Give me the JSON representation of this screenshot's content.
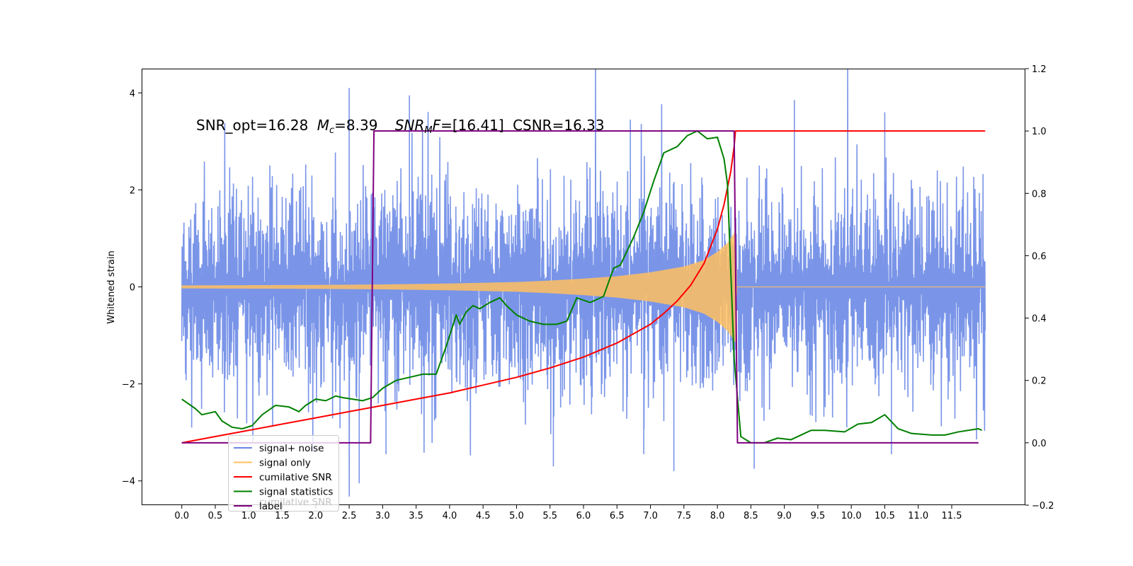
{
  "chart_data": {
    "type": "line",
    "annotation": {
      "snr_opt": "SNR_opt=16.28",
      "mc_symbol": "M",
      "mc_sub": "c",
      "mc_value": "=8.39",
      "snrmf_symbol": "SNR",
      "snrmf_sub": "M",
      "snrmf_tail": "F",
      "snrmf_value": "=[16.41]",
      "csnr": "CSNR=16.33"
    },
    "ylabel": "Whitened strain",
    "xlim": [
      -0.6,
      12.6
    ],
    "ylim": [
      -4.5,
      4.5
    ],
    "y2lim": [
      -0.2,
      1.2
    ],
    "x_ticks": [
      "0.0",
      "0.5",
      "1.0",
      "1.5",
      "2.0",
      "2.5",
      "3.0",
      "3.5",
      "4.0",
      "4.5",
      "5.0",
      "5.5",
      "6.0",
      "6.5",
      "7.0",
      "7.5",
      "8.0",
      "8.5",
      "9.0",
      "9.5",
      "10.0",
      "10.5",
      "11.0",
      "11.5"
    ],
    "y_ticks": [
      "4",
      "2",
      "0",
      "−2",
      "−4"
    ],
    "y_tick_values": [
      4,
      2,
      0,
      -2,
      -4
    ],
    "y2_ticks": [
      "1.2",
      "1.0",
      "0.8",
      "0.6",
      "0.4",
      "0.2",
      "0.0",
      "−0.2"
    ],
    "y2_tick_values": [
      1.2,
      1.0,
      0.8,
      0.6,
      0.4,
      0.2,
      0.0,
      -0.2
    ],
    "legend": {
      "placement": "lower-left",
      "entries": [
        {
          "label": "signal+ noise",
          "color": "#6b87e6"
        },
        {
          "label": "signal only",
          "color": "#ffbf5f"
        },
        {
          "label": "cumilative SNR",
          "color": "#ff0000"
        },
        {
          "label": "signal statistics",
          "color": "#008000"
        },
        {
          "label": "label",
          "color": "#800080"
        }
      ],
      "occluded_text": "cumilative SNR"
    },
    "series": [
      {
        "name": "signal+ noise",
        "axis": "left",
        "color": "#7a95e8",
        "description_kind": "noise",
        "x_range": [
          0.0,
          12.0
        ],
        "typical_amplitude": 2.0,
        "peaks": [
          [
            2.5,
            4.1
          ],
          [
            2.65,
            -4.05
          ],
          [
            3.4,
            3.95
          ],
          [
            9.15,
            3.85
          ],
          [
            10.5,
            3.6
          ],
          [
            7.35,
            -3.8
          ],
          [
            8.55,
            -3.75
          ],
          [
            5.55,
            -3.7
          ],
          [
            6.7,
            3.45
          ],
          [
            10.6,
            -3.45
          ],
          [
            3.05,
            -3.45
          ],
          [
            6.9,
            -3.45
          ]
        ]
      },
      {
        "name": "signal only",
        "axis": "left",
        "color": "#ffbf5f",
        "description_kind": "chirp",
        "x": [
          0.0,
          1.0,
          2.0,
          3.0,
          4.0,
          5.0,
          5.5,
          6.0,
          6.5,
          7.0,
          7.5,
          7.8,
          8.0,
          8.15,
          8.25,
          8.27,
          8.29,
          12.0
        ],
        "envelope": [
          0.03,
          0.035,
          0.04,
          0.05,
          0.07,
          0.1,
          0.13,
          0.17,
          0.22,
          0.3,
          0.42,
          0.55,
          0.72,
          0.9,
          1.1,
          1.15,
          0.0,
          0.0
        ]
      },
      {
        "name": "cumilative SNR",
        "axis": "right",
        "color": "#ff0000",
        "x": [
          0.0,
          0.5,
          1.0,
          1.5,
          2.0,
          2.5,
          3.0,
          3.5,
          4.0,
          4.5,
          5.0,
          5.5,
          6.0,
          6.5,
          7.0,
          7.2,
          7.4,
          7.6,
          7.8,
          8.0,
          8.1,
          8.2,
          8.25,
          8.27,
          8.3,
          12.0
        ],
        "values": [
          0.0,
          0.02,
          0.04,
          0.06,
          0.08,
          0.1,
          0.12,
          0.14,
          0.16,
          0.185,
          0.21,
          0.24,
          0.275,
          0.32,
          0.38,
          0.415,
          0.455,
          0.505,
          0.575,
          0.685,
          0.765,
          0.87,
          0.95,
          1.0,
          1.0,
          1.0
        ]
      },
      {
        "name": "signal statistics",
        "axis": "right",
        "color": "#008000",
        "x": [
          0.0,
          0.2,
          0.3,
          0.5,
          0.6,
          0.75,
          0.9,
          1.05,
          1.2,
          1.4,
          1.6,
          1.75,
          1.85,
          2.0,
          2.15,
          2.3,
          2.4,
          2.55,
          2.7,
          2.85,
          3.0,
          3.2,
          3.4,
          3.6,
          3.8,
          3.95,
          4.1,
          4.15,
          4.25,
          4.35,
          4.45,
          4.6,
          4.75,
          4.85,
          5.0,
          5.2,
          5.4,
          5.6,
          5.75,
          5.9,
          6.1,
          6.3,
          6.45,
          6.55,
          6.75,
          6.9,
          7.05,
          7.2,
          7.4,
          7.55,
          7.7,
          7.85,
          8.0,
          8.1,
          8.15,
          8.25,
          8.35,
          8.5,
          8.7,
          8.9,
          9.1,
          9.4,
          9.6,
          9.9,
          10.1,
          10.3,
          10.5,
          10.7,
          10.9,
          11.2,
          11.4,
          11.6,
          11.9,
          11.95
        ],
        "values": [
          0.14,
          0.11,
          0.09,
          0.1,
          0.07,
          0.05,
          0.045,
          0.055,
          0.09,
          0.12,
          0.115,
          0.1,
          0.12,
          0.14,
          0.135,
          0.15,
          0.145,
          0.14,
          0.135,
          0.145,
          0.175,
          0.2,
          0.21,
          0.22,
          0.22,
          0.31,
          0.41,
          0.38,
          0.42,
          0.44,
          0.43,
          0.45,
          0.465,
          0.44,
          0.41,
          0.39,
          0.38,
          0.38,
          0.39,
          0.465,
          0.45,
          0.47,
          0.56,
          0.57,
          0.66,
          0.74,
          0.84,
          0.93,
          0.95,
          0.985,
          1.0,
          0.975,
          0.98,
          0.91,
          0.83,
          0.27,
          0.02,
          0.0,
          0.0,
          0.015,
          0.01,
          0.04,
          0.04,
          0.035,
          0.06,
          0.065,
          0.09,
          0.045,
          0.03,
          0.025,
          0.025,
          0.035,
          0.045,
          0.04
        ]
      },
      {
        "name": "label",
        "axis": "right",
        "color": "#800080",
        "x": [
          0.0,
          2.82,
          2.87,
          8.25,
          8.3,
          11.9
        ],
        "values": [
          0.0,
          0.0,
          1.0,
          1.0,
          0.0,
          0.0
        ]
      }
    ],
    "grid": false
  }
}
